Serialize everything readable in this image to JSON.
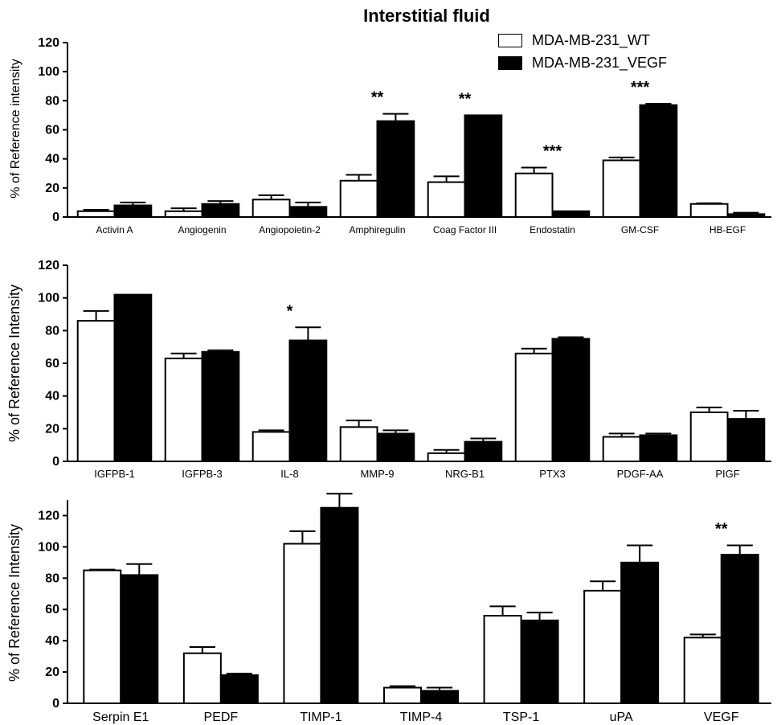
{
  "title": "Interstitial fluid",
  "colors": {
    "wt": "#ffffff",
    "vegf": "#000000",
    "axis": "#000000"
  },
  "legend": {
    "placement": "top-right",
    "entries": [
      {
        "label": "MDA-MB-231_WT",
        "color": "#ffffff"
      },
      {
        "label": "MDA-MB-231_VEGF",
        "color": "#000000"
      }
    ]
  },
  "chart_data": [
    {
      "type": "bar",
      "ylabel": "% of Reference intensity",
      "ylim": [
        0,
        120
      ],
      "yticks": [
        0,
        20,
        40,
        60,
        80,
        100,
        120
      ],
      "categories": [
        "Activin A",
        "Angiogenin",
        "Angiopoietin-2",
        "Amphiregulin",
        "Coag Factor III",
        "Endostatin",
        "GM-CSF",
        "HB-EGF"
      ],
      "series": [
        {
          "name": "MDA-MB-231_WT",
          "values": [
            4,
            4,
            12,
            25,
            24,
            30,
            39,
            9
          ],
          "errors": [
            1,
            2,
            3,
            4,
            4,
            4,
            2,
            0.5
          ]
        },
        {
          "name": "MDA-MB-231_VEGF",
          "values": [
            8,
            9,
            7,
            66,
            70,
            4,
            77,
            2
          ],
          "errors": [
            2,
            2,
            3,
            5,
            0,
            0,
            1,
            1
          ]
        }
      ],
      "annotations": [
        "",
        "",
        "",
        "**",
        "**",
        "***",
        "***",
        ""
      ]
    },
    {
      "type": "bar",
      "ylabel": "% of Reference Intensity",
      "ylim": [
        0,
        120
      ],
      "yticks": [
        0,
        20,
        40,
        60,
        80,
        100,
        120
      ],
      "categories": [
        "IGFPB-1",
        "IGFPB-3",
        "IL-8",
        "MMP-9",
        "NRG-B1",
        "PTX3",
        "PDGF-AA",
        "PIGF"
      ],
      "series": [
        {
          "name": "MDA-MB-231_WT",
          "values": [
            86,
            63,
            18,
            21,
            5,
            66,
            15,
            30
          ],
          "errors": [
            6,
            3,
            1,
            4,
            2,
            3,
            2,
            3
          ]
        },
        {
          "name": "MDA-MB-231_VEGF",
          "values": [
            102,
            67,
            74,
            17,
            12,
            75,
            16,
            26
          ],
          "errors": [
            0,
            1,
            8,
            2,
            2,
            1,
            1,
            5
          ]
        }
      ],
      "annotations": [
        "",
        "",
        "*",
        "",
        "",
        "",
        "",
        ""
      ]
    },
    {
      "type": "bar",
      "ylabel": "% of Reference Intensity",
      "ylim": [
        0,
        130
      ],
      "yticks": [
        0,
        20,
        40,
        60,
        80,
        100,
        120
      ],
      "categories": [
        "Serpin E1",
        "PEDF",
        "TIMP-1",
        "TIMP-4",
        "TSP-1",
        "uPA",
        "VEGF"
      ],
      "series": [
        {
          "name": "MDA-MB-231_WT",
          "values": [
            85,
            32,
            102,
            10,
            56,
            72,
            42
          ],
          "errors": [
            0.5,
            4,
            8,
            1,
            6,
            6,
            2
          ]
        },
        {
          "name": "MDA-MB-231_VEGF",
          "values": [
            82,
            18,
            125,
            8,
            53,
            90,
            95
          ],
          "errors": [
            7,
            1,
            9,
            2,
            5,
            11,
            6
          ]
        }
      ],
      "annotations": [
        "",
        "",
        "",
        "",
        "",
        "",
        "**"
      ]
    }
  ]
}
